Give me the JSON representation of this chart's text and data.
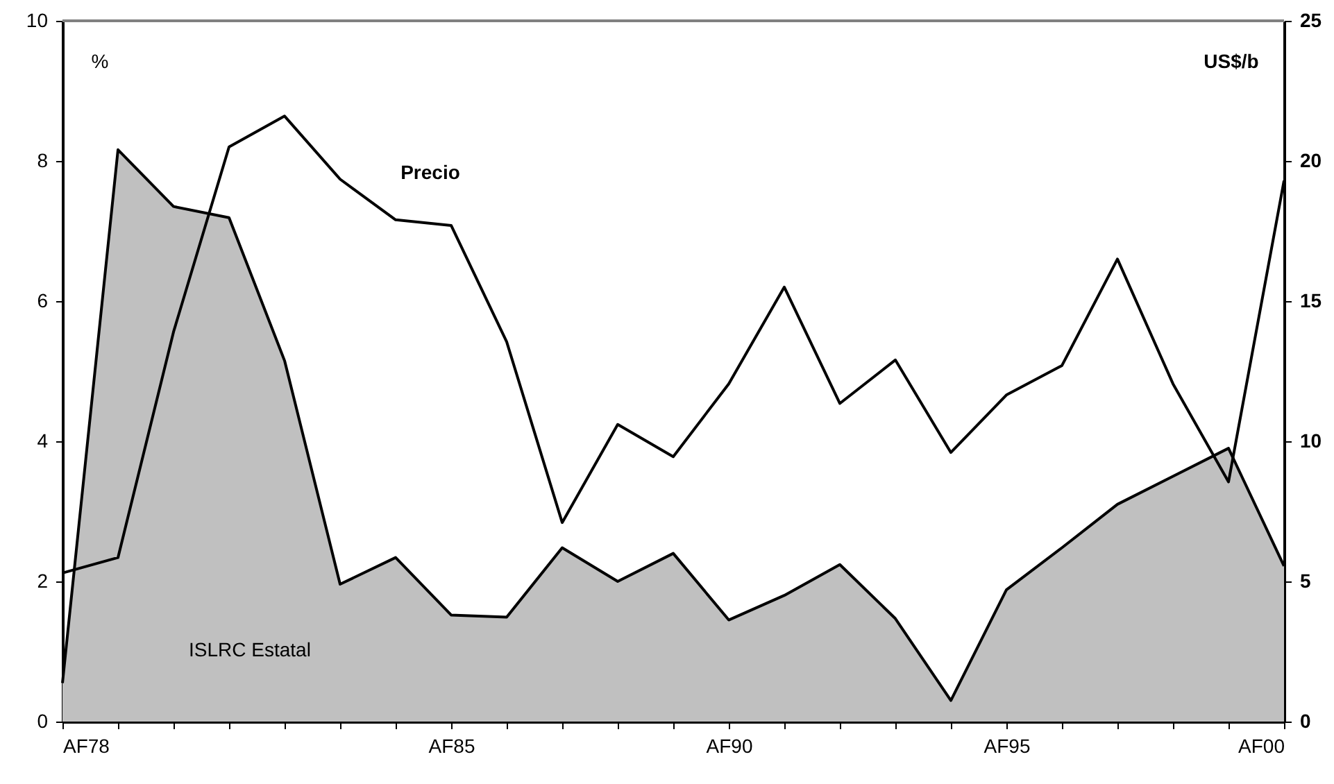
{
  "chart_data": {
    "type": "line",
    "categories": [
      "AF78",
      null,
      null,
      null,
      null,
      null,
      null,
      "AF85",
      null,
      null,
      null,
      null,
      "AF90",
      null,
      null,
      null,
      null,
      "AF95",
      null,
      null,
      null,
      null,
      "AF00"
    ],
    "ylabel": "%",
    "y2label": "US$/b",
    "ylim": [
      0,
      10
    ],
    "yticks": [
      0,
      2,
      4,
      6,
      8,
      10
    ],
    "y2lim": [
      0,
      25
    ],
    "y2ticks": [
      0,
      5,
      10,
      15,
      20,
      25
    ],
    "grid": false,
    "legend": false,
    "series": [
      {
        "name": "ISLRC Estatal",
        "type": "area",
        "color": "#c0c0c0",
        "values": [
          0.55,
          8.16,
          7.35,
          7.19,
          5.15,
          1.96,
          2.34,
          1.52,
          1.49,
          2.48,
          2.0,
          2.4,
          1.45,
          1.8,
          2.24,
          1.47,
          0.3,
          1.88,
          2.48,
          3.1,
          3.5,
          3.9,
          2.22
        ]
      },
      {
        "name": "Precio",
        "axis": "y2",
        "color": "#000000",
        "values": [
          5.3,
          5.85,
          13.9,
          20.5,
          21.6,
          19.35,
          17.9,
          17.7,
          13.55,
          7.1,
          10.6,
          9.45,
          12.05,
          15.5,
          11.35,
          12.9,
          9.6,
          11.65,
          12.7,
          16.5,
          12.05,
          8.55,
          19.3
        ]
      }
    ]
  }
}
